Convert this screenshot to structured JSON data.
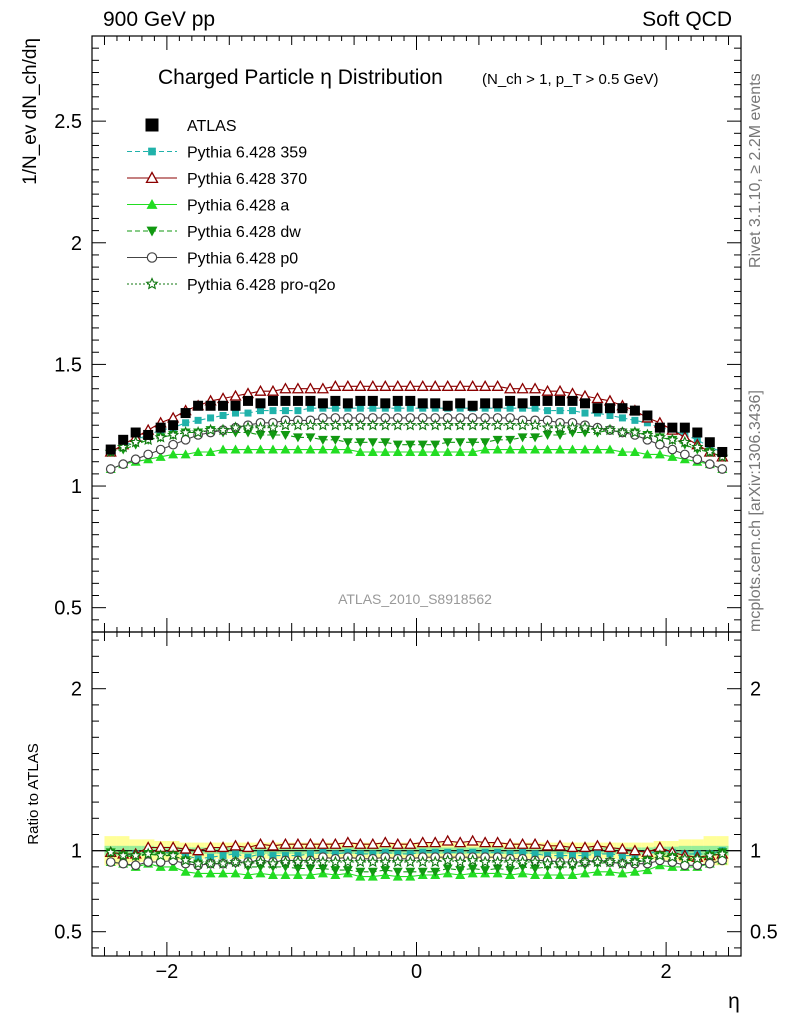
{
  "header": {
    "left": "900 GeV pp",
    "right": "Soft QCD"
  },
  "side_labels": {
    "top": "Rivet 3.1.10, ≥ 2.2M events",
    "bottom": "mcplots.cern.ch [arXiv:1306.3436]"
  },
  "colors": {
    "ATLAS": "#000000",
    "Pythia 6.428 359": "#20b2aa",
    "Pythia 6.428 370": "#8b0000",
    "Pythia 6.428 a": "#22dd22",
    "Pythia 6.428 dw": "#119911",
    "Pythia 6.428 p0": "#444444",
    "Pythia 6.428 pro-q2o": "#117711",
    "band_outer": "#ffff99",
    "band_inner": "#99ee99"
  },
  "chart_data": {
    "type": "scatter",
    "title": "Charged Particle η Distribution",
    "title_cuts": "(N_ch > 1, p_T > 0.5 GeV)",
    "analysis_id": "ATLAS_2010_S8918562",
    "xlabel": "η",
    "ylabel": "1/N_ev dN_ch/dη",
    "ratio_ylabel": "Ratio to ATLAS",
    "xlim": [
      -2.6,
      2.6
    ],
    "ylim": [
      0.4,
      2.85
    ],
    "ratio_ylim": [
      0.35,
      2.35
    ],
    "x_ticks": [
      "−2",
      "0",
      "2"
    ],
    "y_ticks": [
      "0.5",
      "1",
      "1.5",
      "2",
      "2.5"
    ],
    "ratio_y_ticks": [
      "0.5",
      "1",
      "2"
    ],
    "legend_position": "top-left",
    "x": [
      -2.45,
      -2.35,
      -2.25,
      -2.15,
      -2.05,
      -1.95,
      -1.85,
      -1.75,
      -1.65,
      -1.55,
      -1.45,
      -1.35,
      -1.25,
      -1.15,
      -1.05,
      -0.95,
      -0.85,
      -0.75,
      -0.65,
      -0.55,
      -0.45,
      -0.35,
      -0.25,
      -0.15,
      -0.05,
      0.05,
      0.15,
      0.25,
      0.35,
      0.45,
      0.55,
      0.65,
      0.75,
      0.85,
      0.95,
      1.05,
      1.15,
      1.25,
      1.35,
      1.45,
      1.55,
      1.65,
      1.75,
      1.85,
      1.95,
      2.05,
      2.15,
      2.25,
      2.35,
      2.45
    ],
    "series": [
      {
        "name": "ATLAS",
        "marker": "square",
        "line": "none",
        "values": [
          1.15,
          1.19,
          1.22,
          1.21,
          1.24,
          1.25,
          1.3,
          1.33,
          1.33,
          1.33,
          1.33,
          1.35,
          1.34,
          1.35,
          1.35,
          1.35,
          1.35,
          1.34,
          1.35,
          1.34,
          1.35,
          1.35,
          1.34,
          1.35,
          1.35,
          1.34,
          1.34,
          1.33,
          1.34,
          1.33,
          1.34,
          1.34,
          1.35,
          1.34,
          1.35,
          1.35,
          1.35,
          1.35,
          1.34,
          1.32,
          1.32,
          1.32,
          1.31,
          1.29,
          1.24,
          1.24,
          1.24,
          1.22,
          1.18,
          1.14
        ],
        "ratio": [
          1,
          1,
          1,
          1,
          1,
          1,
          1,
          1,
          1,
          1,
          1,
          1,
          1,
          1,
          1,
          1,
          1,
          1,
          1,
          1,
          1,
          1,
          1,
          1,
          1,
          1,
          1,
          1,
          1,
          1,
          1,
          1,
          1,
          1,
          1,
          1,
          1,
          1,
          1,
          1,
          1,
          1,
          1,
          1,
          1,
          1,
          1,
          1,
          1,
          1
        ]
      },
      {
        "name": "Pythia 6.428 359",
        "marker": "smallsquare",
        "line": "dashed",
        "values": [
          1.14,
          1.16,
          1.19,
          1.21,
          1.23,
          1.24,
          1.26,
          1.27,
          1.28,
          1.29,
          1.3,
          1.3,
          1.31,
          1.31,
          1.31,
          1.31,
          1.32,
          1.32,
          1.32,
          1.32,
          1.32,
          1.32,
          1.32,
          1.32,
          1.32,
          1.32,
          1.32,
          1.32,
          1.32,
          1.32,
          1.32,
          1.32,
          1.32,
          1.32,
          1.32,
          1.31,
          1.31,
          1.31,
          1.3,
          1.3,
          1.29,
          1.28,
          1.27,
          1.26,
          1.24,
          1.23,
          1.21,
          1.19,
          1.16,
          1.14
        ],
        "ratio": [
          0.99,
          0.97,
          0.98,
          1.0,
          0.99,
          0.99,
          0.97,
          0.95,
          0.96,
          0.97,
          0.98,
          0.96,
          0.98,
          0.97,
          0.97,
          0.97,
          0.98,
          0.99,
          0.98,
          0.99,
          0.98,
          0.98,
          0.99,
          0.98,
          0.98,
          0.99,
          0.99,
          0.99,
          0.99,
          0.99,
          0.99,
          0.99,
          0.98,
          0.99,
          0.98,
          0.97,
          0.97,
          0.97,
          0.97,
          0.98,
          0.98,
          0.97,
          0.97,
          0.98,
          1.0,
          0.99,
          0.98,
          0.98,
          0.98,
          1.0
        ]
      },
      {
        "name": "Pythia 6.428 370",
        "marker": "triangle-open",
        "line": "solid",
        "values": [
          1.14,
          1.17,
          1.2,
          1.23,
          1.26,
          1.28,
          1.31,
          1.33,
          1.35,
          1.36,
          1.37,
          1.38,
          1.39,
          1.39,
          1.4,
          1.4,
          1.4,
          1.4,
          1.41,
          1.41,
          1.41,
          1.41,
          1.41,
          1.41,
          1.41,
          1.41,
          1.41,
          1.41,
          1.41,
          1.41,
          1.41,
          1.41,
          1.4,
          1.4,
          1.4,
          1.39,
          1.39,
          1.38,
          1.37,
          1.36,
          1.35,
          1.33,
          1.31,
          1.28,
          1.26,
          1.23,
          1.2,
          1.17,
          1.14,
          1.12
        ],
        "ratio": [
          0.99,
          0.98,
          0.98,
          1.02,
          1.02,
          1.02,
          1.01,
          1.0,
          1.02,
          1.02,
          1.03,
          1.02,
          1.04,
          1.03,
          1.04,
          1.04,
          1.04,
          1.04,
          1.04,
          1.05,
          1.04,
          1.04,
          1.05,
          1.04,
          1.04,
          1.05,
          1.05,
          1.06,
          1.05,
          1.06,
          1.05,
          1.05,
          1.04,
          1.04,
          1.04,
          1.03,
          1.03,
          1.02,
          1.02,
          1.03,
          1.02,
          1.01,
          1.0,
          0.99,
          1.02,
          0.99,
          0.97,
          0.96,
          0.97,
          0.98
        ]
      },
      {
        "name": "Pythia 6.428 a",
        "marker": "triangle",
        "line": "solid",
        "values": [
          1.07,
          1.09,
          1.1,
          1.11,
          1.12,
          1.13,
          1.13,
          1.14,
          1.14,
          1.15,
          1.15,
          1.15,
          1.15,
          1.15,
          1.15,
          1.15,
          1.15,
          1.15,
          1.15,
          1.15,
          1.14,
          1.14,
          1.14,
          1.14,
          1.14,
          1.14,
          1.14,
          1.14,
          1.14,
          1.14,
          1.15,
          1.15,
          1.15,
          1.15,
          1.15,
          1.15,
          1.15,
          1.15,
          1.15,
          1.15,
          1.15,
          1.14,
          1.14,
          1.13,
          1.13,
          1.12,
          1.11,
          1.1,
          1.09,
          1.07
        ],
        "ratio": [
          0.93,
          0.92,
          0.9,
          0.92,
          0.9,
          0.9,
          0.87,
          0.86,
          0.86,
          0.86,
          0.86,
          0.85,
          0.86,
          0.85,
          0.85,
          0.85,
          0.85,
          0.86,
          0.85,
          0.86,
          0.84,
          0.84,
          0.85,
          0.84,
          0.84,
          0.85,
          0.85,
          0.86,
          0.85,
          0.86,
          0.86,
          0.86,
          0.85,
          0.86,
          0.85,
          0.85,
          0.85,
          0.85,
          0.86,
          0.87,
          0.87,
          0.86,
          0.87,
          0.88,
          0.91,
          0.9,
          0.9,
          0.9,
          0.92,
          0.94
        ]
      },
      {
        "name": "Pythia 6.428 dw",
        "marker": "triangle-down",
        "line": "dashed",
        "values": [
          1.14,
          1.15,
          1.17,
          1.19,
          1.2,
          1.21,
          1.22,
          1.22,
          1.23,
          1.22,
          1.22,
          1.22,
          1.21,
          1.21,
          1.21,
          1.2,
          1.2,
          1.19,
          1.19,
          1.18,
          1.18,
          1.18,
          1.18,
          1.17,
          1.17,
          1.17,
          1.17,
          1.18,
          1.18,
          1.18,
          1.18,
          1.19,
          1.19,
          1.2,
          1.2,
          1.21,
          1.21,
          1.22,
          1.22,
          1.22,
          1.23,
          1.22,
          1.22,
          1.21,
          1.2,
          1.19,
          1.17,
          1.15,
          1.14,
          1.13
        ],
        "ratio": [
          0.99,
          0.97,
          0.96,
          0.98,
          0.97,
          0.97,
          0.94,
          0.92,
          0.92,
          0.92,
          0.92,
          0.9,
          0.9,
          0.9,
          0.9,
          0.89,
          0.89,
          0.89,
          0.88,
          0.88,
          0.87,
          0.87,
          0.88,
          0.87,
          0.87,
          0.87,
          0.87,
          0.89,
          0.88,
          0.89,
          0.88,
          0.89,
          0.88,
          0.9,
          0.89,
          0.9,
          0.9,
          0.9,
          0.91,
          0.92,
          0.93,
          0.92,
          0.93,
          0.94,
          0.97,
          0.96,
          0.94,
          0.94,
          0.97,
          0.99
        ]
      },
      {
        "name": "Pythia 6.428 p0",
        "marker": "circle-open",
        "line": "solid",
        "values": [
          1.07,
          1.09,
          1.11,
          1.13,
          1.15,
          1.17,
          1.19,
          1.21,
          1.22,
          1.23,
          1.24,
          1.25,
          1.26,
          1.26,
          1.27,
          1.27,
          1.27,
          1.28,
          1.28,
          1.28,
          1.28,
          1.28,
          1.28,
          1.28,
          1.28,
          1.28,
          1.28,
          1.28,
          1.28,
          1.28,
          1.28,
          1.28,
          1.28,
          1.27,
          1.27,
          1.27,
          1.26,
          1.26,
          1.25,
          1.24,
          1.23,
          1.22,
          1.21,
          1.19,
          1.17,
          1.15,
          1.13,
          1.11,
          1.09,
          1.07
        ],
        "ratio": [
          0.93,
          0.92,
          0.91,
          0.93,
          0.93,
          0.94,
          0.92,
          0.91,
          0.92,
          0.92,
          0.93,
          0.93,
          0.94,
          0.93,
          0.94,
          0.94,
          0.94,
          0.96,
          0.95,
          0.96,
          0.95,
          0.95,
          0.96,
          0.95,
          0.95,
          0.96,
          0.96,
          0.96,
          0.96,
          0.96,
          0.96,
          0.96,
          0.95,
          0.95,
          0.94,
          0.94,
          0.93,
          0.93,
          0.93,
          0.94,
          0.93,
          0.92,
          0.92,
          0.92,
          0.94,
          0.93,
          0.91,
          0.91,
          0.92,
          0.94
        ]
      },
      {
        "name": "Pythia 6.428 pro-q2o",
        "marker": "star",
        "line": "dotted",
        "values": [
          1.14,
          1.16,
          1.18,
          1.19,
          1.2,
          1.21,
          1.22,
          1.22,
          1.23,
          1.23,
          1.24,
          1.24,
          1.24,
          1.24,
          1.25,
          1.25,
          1.25,
          1.25,
          1.25,
          1.25,
          1.25,
          1.25,
          1.25,
          1.25,
          1.25,
          1.25,
          1.25,
          1.25,
          1.25,
          1.25,
          1.25,
          1.25,
          1.25,
          1.25,
          1.25,
          1.24,
          1.24,
          1.24,
          1.24,
          1.23,
          1.23,
          1.22,
          1.22,
          1.21,
          1.2,
          1.19,
          1.18,
          1.16,
          1.14,
          1.12
        ],
        "ratio": [
          0.99,
          0.97,
          0.97,
          0.98,
          0.97,
          0.97,
          0.94,
          0.92,
          0.92,
          0.92,
          0.93,
          0.92,
          0.93,
          0.92,
          0.93,
          0.93,
          0.93,
          0.93,
          0.93,
          0.93,
          0.93,
          0.93,
          0.93,
          0.93,
          0.93,
          0.93,
          0.93,
          0.94,
          0.93,
          0.94,
          0.93,
          0.93,
          0.93,
          0.93,
          0.93,
          0.92,
          0.92,
          0.92,
          0.93,
          0.93,
          0.93,
          0.92,
          0.93,
          0.94,
          0.97,
          0.96,
          0.95,
          0.95,
          0.97,
          0.98
        ]
      }
    ],
    "band_outer_half": [
      0.09,
      0.09,
      0.07,
      0.07,
      0.06,
      0.06,
      0.05,
      0.05,
      0.05,
      0.05,
      0.05,
      0.05,
      0.05,
      0.05,
      0.05,
      0.05,
      0.05,
      0.05,
      0.05,
      0.05,
      0.05,
      0.05,
      0.05,
      0.05,
      0.05,
      0.05,
      0.05,
      0.05,
      0.05,
      0.05,
      0.05,
      0.05,
      0.05,
      0.05,
      0.05,
      0.05,
      0.05,
      0.05,
      0.05,
      0.05,
      0.05,
      0.05,
      0.05,
      0.05,
      0.06,
      0.06,
      0.07,
      0.07,
      0.09,
      0.09
    ],
    "band_inner_half": [
      0.03,
      0.03,
      0.03,
      0.03,
      0.025,
      0.025,
      0.02,
      0.02,
      0.02,
      0.02,
      0.02,
      0.02,
      0.02,
      0.02,
      0.02,
      0.02,
      0.02,
      0.02,
      0.02,
      0.02,
      0.02,
      0.02,
      0.02,
      0.02,
      0.02,
      0.02,
      0.02,
      0.02,
      0.02,
      0.02,
      0.02,
      0.02,
      0.02,
      0.02,
      0.02,
      0.02,
      0.02,
      0.02,
      0.02,
      0.02,
      0.02,
      0.02,
      0.02,
      0.02,
      0.025,
      0.025,
      0.03,
      0.03,
      0.03,
      0.03
    ]
  }
}
